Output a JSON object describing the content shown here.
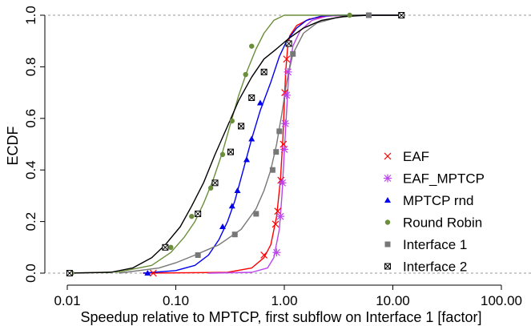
{
  "chart_data": {
    "type": "line",
    "xlabel": "Speedup relative to MPTCP, first subflow on Interface 1 [factor]",
    "ylabel": "ECDF",
    "xscale": "log",
    "xlim": [
      0.01,
      100
    ],
    "ylim": [
      0,
      1
    ],
    "x_ticks": [
      0.01,
      0.1,
      1,
      10,
      100
    ],
    "x_tick_labels": [
      "0.01",
      "0.10",
      "1.00",
      "10.00",
      "100.00"
    ],
    "y_ticks": [
      0,
      0.2,
      0.4,
      0.6,
      0.8,
      1
    ],
    "y_tick_labels": [
      "0.0",
      "0.2",
      "0.4",
      "0.6",
      "0.8",
      "1.0"
    ],
    "reference_lines": [
      0,
      1
    ],
    "grid": false,
    "legend_position": "bottom-right",
    "series": [
      {
        "name": "EAF",
        "color": "#ff0000",
        "marker": "x",
        "line": [
          [
            0.05,
            0
          ],
          [
            0.3,
            0.003
          ],
          [
            0.5,
            0.02
          ],
          [
            0.65,
            0.06
          ],
          [
            0.75,
            0.11
          ],
          [
            0.85,
            0.22
          ],
          [
            0.92,
            0.36
          ],
          [
            0.97,
            0.52
          ],
          [
            1.0,
            0.66
          ],
          [
            1.03,
            0.78
          ],
          [
            1.07,
            0.87
          ],
          [
            1.12,
            0.92
          ],
          [
            1.3,
            0.96
          ],
          [
            1.7,
            0.985
          ],
          [
            2.5,
            0.997
          ],
          [
            4,
            1
          ],
          [
            12,
            1
          ]
        ],
        "markers": [
          [
            0.062,
            0
          ],
          [
            0.65,
            0.07
          ],
          [
            0.83,
            0.19
          ],
          [
            0.87,
            0.24
          ],
          [
            0.93,
            0.36
          ],
          [
            0.98,
            0.5
          ],
          [
            1.01,
            0.7
          ],
          [
            1.05,
            0.83
          ]
        ]
      },
      {
        "name": "EAF_MPTCP",
        "color": "#bb44ee",
        "marker": "asterisk",
        "line": [
          [
            0.2,
            0
          ],
          [
            0.5,
            0.003
          ],
          [
            0.7,
            0.02
          ],
          [
            0.8,
            0.06
          ],
          [
            0.9,
            0.17
          ],
          [
            0.95,
            0.3
          ],
          [
            1.0,
            0.47
          ],
          [
            1.05,
            0.63
          ],
          [
            1.1,
            0.78
          ],
          [
            1.2,
            0.88
          ],
          [
            1.4,
            0.94
          ],
          [
            1.8,
            0.98
          ],
          [
            2.5,
            0.997
          ],
          [
            4,
            1
          ],
          [
            12,
            1
          ]
        ],
        "markers": [
          [
            0.85,
            0.08
          ],
          [
            0.92,
            0.22
          ],
          [
            0.96,
            0.35
          ],
          [
            1.0,
            0.48
          ],
          [
            1.02,
            0.58
          ],
          [
            1.05,
            0.69
          ],
          [
            1.08,
            0.78
          ]
        ]
      },
      {
        "name": "MPTCP rnd",
        "color": "#0000ee",
        "marker": "triangle",
        "line": [
          [
            0.05,
            0
          ],
          [
            0.1,
            0.01
          ],
          [
            0.15,
            0.03
          ],
          [
            0.2,
            0.07
          ],
          [
            0.25,
            0.13
          ],
          [
            0.3,
            0.2
          ],
          [
            0.35,
            0.28
          ],
          [
            0.4,
            0.37
          ],
          [
            0.5,
            0.52
          ],
          [
            0.6,
            0.63
          ],
          [
            0.75,
            0.74
          ],
          [
            0.9,
            0.84
          ],
          [
            1.05,
            0.9
          ],
          [
            1.3,
            0.95
          ],
          [
            1.6,
            0.98
          ],
          [
            2.2,
            0.997
          ],
          [
            3,
            1
          ],
          [
            12,
            1
          ]
        ],
        "markers": [
          [
            0.055,
            0
          ],
          [
            0.27,
            0.18
          ],
          [
            0.33,
            0.26
          ],
          [
            0.37,
            0.32
          ],
          [
            0.45,
            0.44
          ],
          [
            0.5,
            0.52
          ],
          [
            0.6,
            0.66
          ]
        ]
      },
      {
        "name": "Round Robin",
        "color": "#6b8e3a",
        "marker": "circle",
        "line": [
          [
            0.01,
            0
          ],
          [
            0.03,
            0.005
          ],
          [
            0.06,
            0.03
          ],
          [
            0.09,
            0.08
          ],
          [
            0.12,
            0.14
          ],
          [
            0.15,
            0.2
          ],
          [
            0.18,
            0.27
          ],
          [
            0.22,
            0.36
          ],
          [
            0.27,
            0.47
          ],
          [
            0.32,
            0.58
          ],
          [
            0.38,
            0.69
          ],
          [
            0.46,
            0.79
          ],
          [
            0.55,
            0.87
          ],
          [
            0.65,
            0.93
          ],
          [
            0.8,
            0.98
          ],
          [
            1.0,
            1
          ],
          [
            12,
            1
          ]
        ],
        "markers": [
          [
            0.011,
            0
          ],
          [
            0.09,
            0.1
          ],
          [
            0.14,
            0.22
          ],
          [
            0.21,
            0.33
          ],
          [
            0.27,
            0.46
          ],
          [
            0.33,
            0.59
          ],
          [
            0.44,
            0.77
          ],
          [
            0.5,
            0.88
          ],
          [
            4,
            1
          ]
        ]
      },
      {
        "name": "Interface 1",
        "color": "#777777",
        "marker": "square",
        "line": [
          [
            0.03,
            0
          ],
          [
            0.07,
            0.02
          ],
          [
            0.1,
            0.04
          ],
          [
            0.15,
            0.07
          ],
          [
            0.25,
            0.11
          ],
          [
            0.4,
            0.17
          ],
          [
            0.55,
            0.25
          ],
          [
            0.65,
            0.32
          ],
          [
            0.75,
            0.4
          ],
          [
            0.85,
            0.5
          ],
          [
            0.95,
            0.62
          ],
          [
            1.05,
            0.74
          ],
          [
            1.2,
            0.85
          ],
          [
            1.5,
            0.93
          ],
          [
            2,
            0.97
          ],
          [
            3,
            0.99
          ],
          [
            5,
            1
          ],
          [
            12,
            1
          ]
        ],
        "markers": [
          [
            0.16,
            0.07
          ],
          [
            0.35,
            0.15
          ],
          [
            0.55,
            0.23
          ],
          [
            0.78,
            0.4
          ],
          [
            0.84,
            0.47
          ],
          [
            0.9,
            0.55
          ],
          [
            1.2,
            0.85
          ],
          [
            6,
            1
          ]
        ]
      },
      {
        "name": "Interface 2",
        "color": "#000000",
        "marker": "box-x",
        "line": [
          [
            0.01,
            0
          ],
          [
            0.025,
            0.003
          ],
          [
            0.04,
            0.02
          ],
          [
            0.06,
            0.06
          ],
          [
            0.08,
            0.11
          ],
          [
            0.11,
            0.18
          ],
          [
            0.14,
            0.26
          ],
          [
            0.18,
            0.35
          ],
          [
            0.23,
            0.46
          ],
          [
            0.3,
            0.57
          ],
          [
            0.38,
            0.67
          ],
          [
            0.5,
            0.76
          ],
          [
            0.65,
            0.83
          ],
          [
            0.85,
            0.87
          ],
          [
            1.1,
            0.91
          ],
          [
            1.5,
            0.95
          ],
          [
            2.2,
            0.98
          ],
          [
            3.5,
            0.995
          ],
          [
            6,
            1
          ],
          [
            12,
            1
          ]
        ],
        "markers": [
          [
            0.0105,
            0
          ],
          [
            0.08,
            0.1
          ],
          [
            0.16,
            0.23
          ],
          [
            0.23,
            0.35
          ],
          [
            0.32,
            0.47
          ],
          [
            0.4,
            0.57
          ],
          [
            0.5,
            0.68
          ],
          [
            0.65,
            0.78
          ],
          [
            1.1,
            0.89
          ],
          [
            12,
            1
          ]
        ]
      }
    ]
  }
}
